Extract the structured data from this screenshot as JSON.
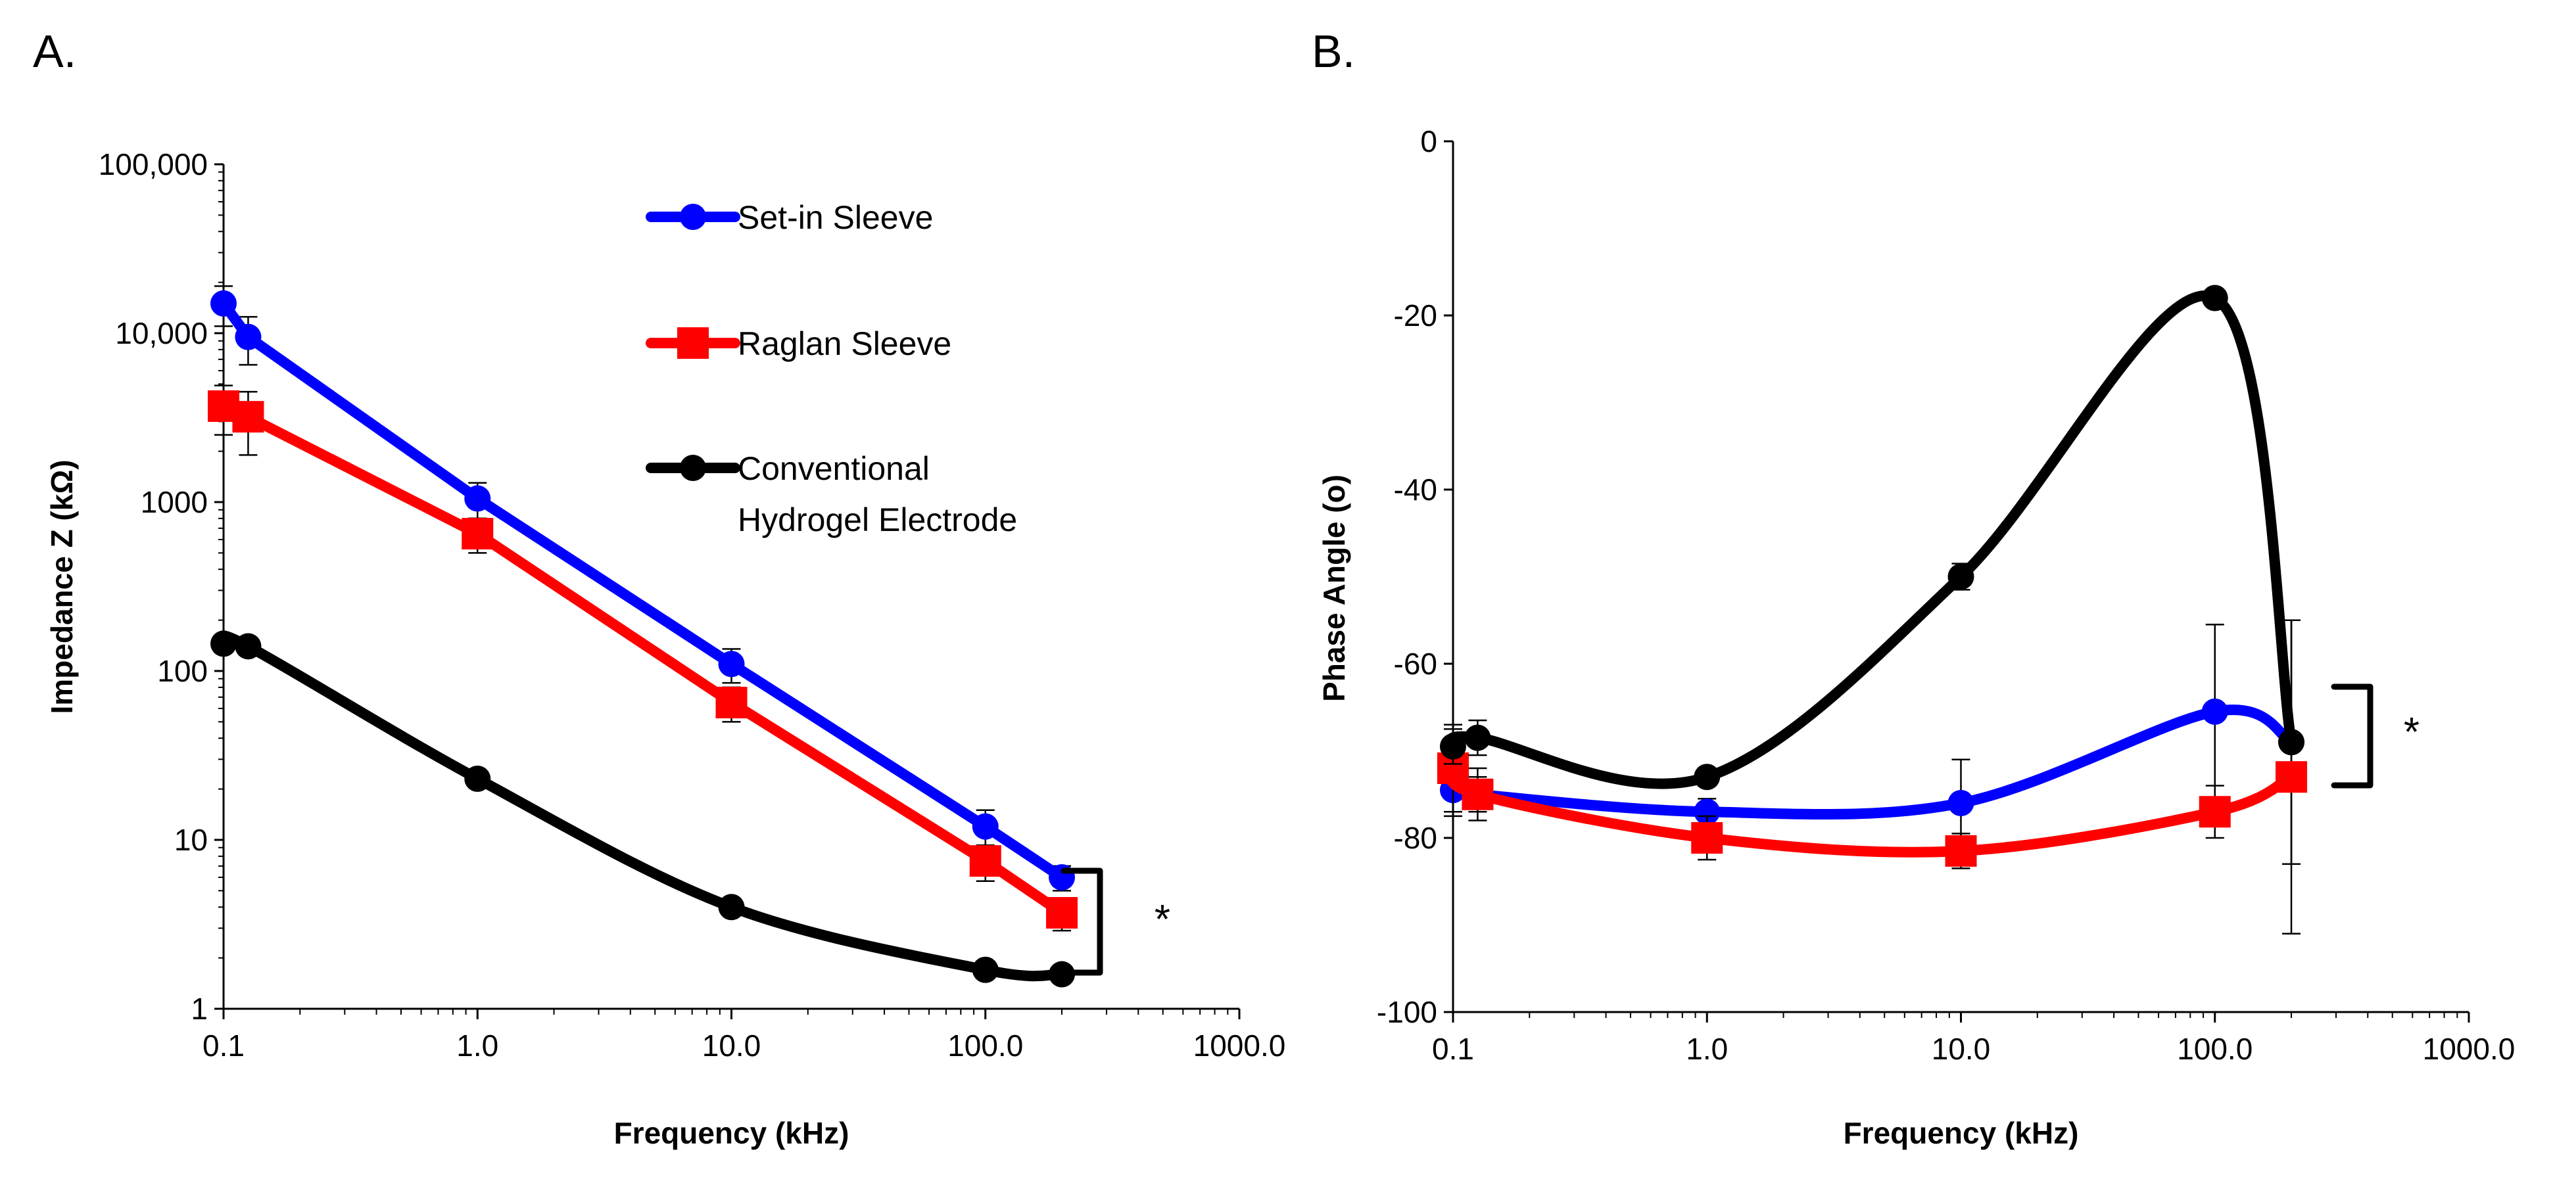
{
  "panels": {
    "a_letter": "A.",
    "b_letter": "B."
  },
  "colors": {
    "set_in": "#0000ff",
    "raglan": "#ff0000",
    "conventional": "#000000"
  },
  "chart_data": [
    {
      "id": "A",
      "type": "line",
      "title": "",
      "xlabel": "Frequency (kHz)",
      "ylabel": "Impedance Z (kΩ)",
      "xscale": "log",
      "yscale": "log",
      "xlim": [
        0.1,
        1000
      ],
      "ylim": [
        1,
        100000
      ],
      "xticks": [
        0.1,
        1,
        10,
        100,
        1000
      ],
      "xtick_labels": [
        "0.1",
        "1.0",
        "10.0",
        "100.0",
        "1000.0"
      ],
      "yticks": [
        1,
        10,
        100,
        1000,
        10000,
        100000
      ],
      "ytick_labels": [
        "1",
        "10",
        "100",
        "1000",
        "10,000",
        "100,000"
      ],
      "legend": [
        "Set-in Sleeve",
        "Raglan Sleeve",
        "Conventional",
        "Hydrogel Electrode"
      ],
      "annotation": "*",
      "series": [
        {
          "name": "Set-in Sleeve",
          "color": "#0000ff",
          "marker": "circle",
          "x": [
            0.1,
            0.125,
            1,
            10,
            100,
            200
          ],
          "y": [
            15000,
            9500,
            1050,
            110,
            12,
            6
          ],
          "err": [
            4000,
            3000,
            250,
            25,
            3,
            1
          ]
        },
        {
          "name": "Raglan Sleeve",
          "color": "#ff0000",
          "marker": "square",
          "x": [
            0.1,
            0.125,
            1,
            10,
            100,
            200
          ],
          "y": [
            3700,
            3200,
            650,
            65,
            7.5,
            3.7
          ],
          "err": [
            1200,
            1300,
            150,
            15,
            1.8,
            0.8
          ]
        },
        {
          "name": "Conventional Hydrogel Electrode",
          "color": "#000000",
          "marker": "circle",
          "x": [
            0.1,
            0.125,
            1,
            10,
            100,
            200
          ],
          "y": [
            145,
            140,
            23,
            4,
            1.7,
            1.6
          ],
          "err": [
            0,
            0,
            0,
            0,
            0,
            0
          ]
        }
      ]
    },
    {
      "id": "B",
      "type": "line",
      "title": "",
      "xlabel": "Frequency (kHz)",
      "ylabel": "Phase Angle (o)",
      "xscale": "log",
      "yscale": "linear",
      "xlim": [
        0.1,
        1000
      ],
      "ylim": [
        -100,
        0
      ],
      "xticks": [
        0.1,
        1,
        10,
        100,
        1000
      ],
      "xtick_labels": [
        "0.1",
        "1.0",
        "10.0",
        "100.0",
        "1000.0"
      ],
      "yticks": [
        -100,
        -80,
        -60,
        -40,
        -20,
        0
      ],
      "ytick_labels": [
        "-100",
        "-80",
        "-60",
        "-40",
        "-20",
        "0"
      ],
      "annotation": "*",
      "series": [
        {
          "name": "Set-in Sleeve",
          "color": "#0000ff",
          "marker": "circle",
          "x": [
            0.1,
            0.125,
            1,
            10,
            100,
            200
          ],
          "y": [
            -74.5,
            -75,
            -77,
            -76,
            -65.5,
            -69
          ],
          "err": [
            3,
            2,
            1.5,
            5,
            10,
            14
          ]
        },
        {
          "name": "Raglan Sleeve",
          "color": "#ff0000",
          "marker": "square",
          "x": [
            0.1,
            0.125,
            1,
            10,
            100,
            200
          ],
          "y": [
            -72,
            -75,
            -80,
            -81.5,
            -77,
            -73
          ],
          "err": [
            5,
            3,
            2.5,
            2,
            3,
            18
          ]
        },
        {
          "name": "Conventional Hydrogel Electrode",
          "color": "#000000",
          "marker": "circle",
          "x": [
            0.1,
            0.125,
            1,
            10,
            100,
            200
          ],
          "y": [
            -69.5,
            -68.5,
            -73,
            -50,
            -18,
            -69
          ],
          "err": [
            2,
            2,
            1,
            1.5,
            0,
            0
          ]
        }
      ]
    }
  ]
}
